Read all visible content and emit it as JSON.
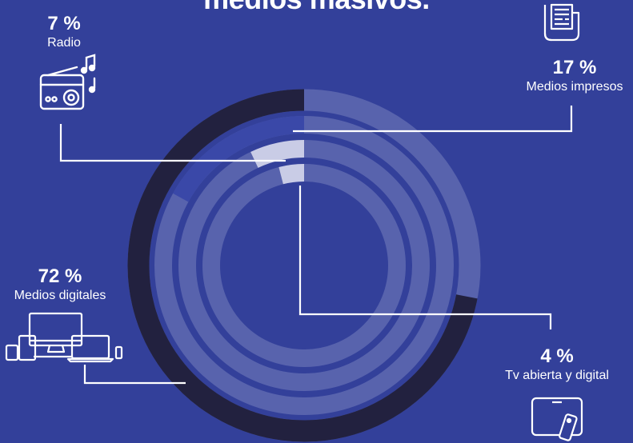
{
  "title": "medios masivos.",
  "colors": {
    "background": "#33409a",
    "ring_base": "#5863ad",
    "ring_dark": "#22213f",
    "ring_mid": "#3a48a8",
    "highlight": "#c9cce6",
    "line": "#ffffff"
  },
  "chart_data": {
    "type": "radial-bar",
    "unit": "%",
    "series": [
      {
        "name": "Medios digitales",
        "value": 72,
        "ring": "outer"
      },
      {
        "name": "Medios impresos",
        "value": 17,
        "ring": "second"
      },
      {
        "name": "Radio",
        "value": 7,
        "ring": "third"
      },
      {
        "name": "Tv abierta y digital",
        "value": 4,
        "ring": "inner"
      }
    ]
  },
  "labels": {
    "radio": {
      "pct": "7 %",
      "name": "Radio",
      "icon": "radio-icon"
    },
    "impresos": {
      "pct": "17 %",
      "name": "Medios impresos",
      "icon": "newspaper-icon"
    },
    "digitales": {
      "pct": "72 %",
      "name": "Medios digitales",
      "icon": "devices-icon"
    },
    "tv": {
      "pct": "4 %",
      "name": "Tv abierta y digital",
      "icon": "tv-remote-icon"
    }
  }
}
